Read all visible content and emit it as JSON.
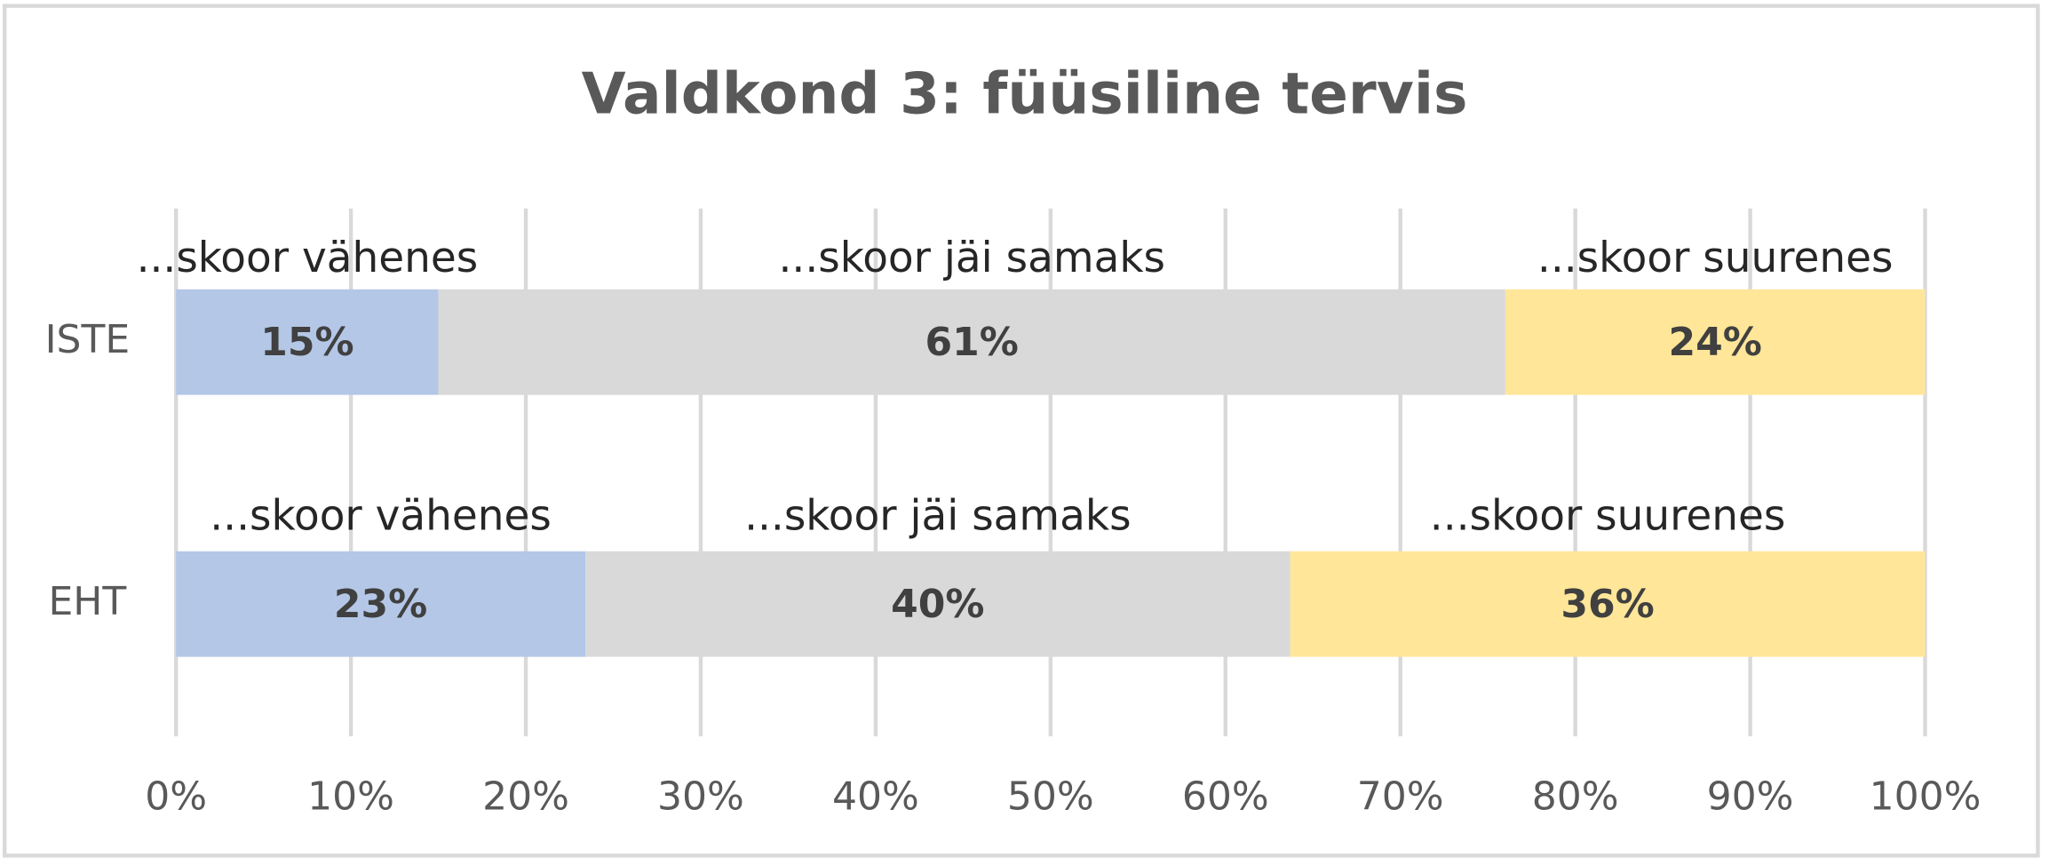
{
  "chart_data": {
    "type": "stacked_barh",
    "title": "Valdkond 3: füüsiline tervis",
    "categories": [
      "ISTE",
      "EHT"
    ],
    "series": [
      {
        "name": "...skoor vähenes",
        "color": "#b4c7e7",
        "values": [
          15,
          23.4
        ],
        "value_labels": [
          "15%",
          "23%"
        ]
      },
      {
        "name": "...skoor jäi samaks",
        "color": "#d9d9d9",
        "values": [
          61,
          40.3
        ],
        "value_labels": [
          "61%",
          "40%"
        ]
      },
      {
        "name": "...skoor suurenes",
        "color": "#ffe699",
        "values": [
          24,
          36.3
        ],
        "value_labels": [
          "24%",
          "36%"
        ]
      }
    ],
    "xlim": [
      0,
      100
    ],
    "xticks": [
      {
        "value": 0,
        "label": "0%"
      },
      {
        "value": 10,
        "label": "10%"
      },
      {
        "value": 20,
        "label": "20%"
      },
      {
        "value": 30,
        "label": "30%"
      },
      {
        "value": 40,
        "label": "40%"
      },
      {
        "value": 50,
        "label": "50%"
      },
      {
        "value": 60,
        "label": "60%"
      },
      {
        "value": 70,
        "label": "70%"
      },
      {
        "value": 80,
        "label": "80%"
      },
      {
        "value": 90,
        "label": "90%"
      },
      {
        "value": 100,
        "label": "100%"
      }
    ],
    "grid": true
  }
}
